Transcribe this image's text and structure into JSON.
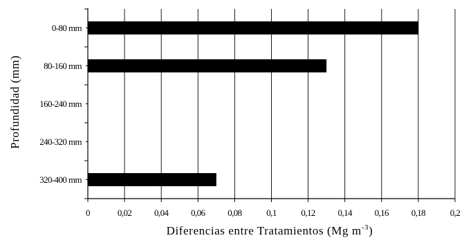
{
  "chart_data": {
    "type": "bar",
    "orientation": "horizontal",
    "categories": [
      "0-80 mm",
      "80-160 mm",
      "160-240 mm",
      "240-320 mm",
      "320-400 mm"
    ],
    "values": [
      0.18,
      0.13,
      null,
      null,
      0.07
    ],
    "xlabel": "Diferencias entre Tratamientos (Mg m",
    "xlabel_unit_exponent": "-3",
    "xlabel_close": ")",
    "ylabel": "Profundidad (mm)",
    "xlim": [
      0,
      0.2
    ],
    "x_ticks": [
      0,
      0.02,
      0.04,
      0.06,
      0.08,
      0.1,
      0.12,
      0.14,
      0.16,
      0.18,
      0.2
    ],
    "x_tick_labels": [
      "0",
      "0,02",
      "0,04",
      "0,06",
      "0,08",
      "0,1",
      "0,12",
      "0,14",
      "0,16",
      "0,18",
      "0,2"
    ],
    "grid": "vertical",
    "legend": "none",
    "bar_color": "#000000"
  }
}
